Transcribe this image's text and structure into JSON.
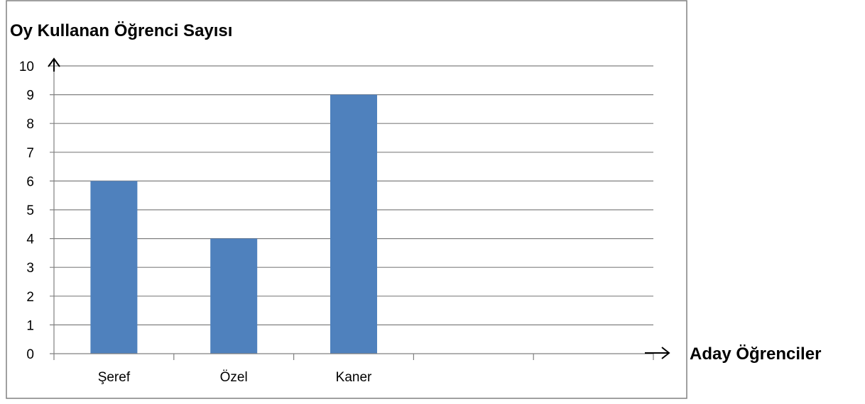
{
  "chart_data": {
    "type": "bar",
    "title": "Oy Kullanan Öğrenci Sayısı",
    "xlabel": "Aday Öğrenciler",
    "ylabel": "Oy Kullanan Öğrenci Sayısı",
    "categories": [
      "Şeref",
      "Özel",
      "Kaner",
      "",
      ""
    ],
    "values": [
      6,
      4,
      9,
      null,
      null
    ],
    "ylim": [
      0,
      10
    ],
    "yticks": [
      "0",
      "1",
      "2",
      "3",
      "4",
      "5",
      "6",
      "7",
      "8",
      "9",
      "10"
    ],
    "grid": true,
    "legend": "none",
    "bar_color": "#4f81bd",
    "grid_color": "#808080"
  }
}
